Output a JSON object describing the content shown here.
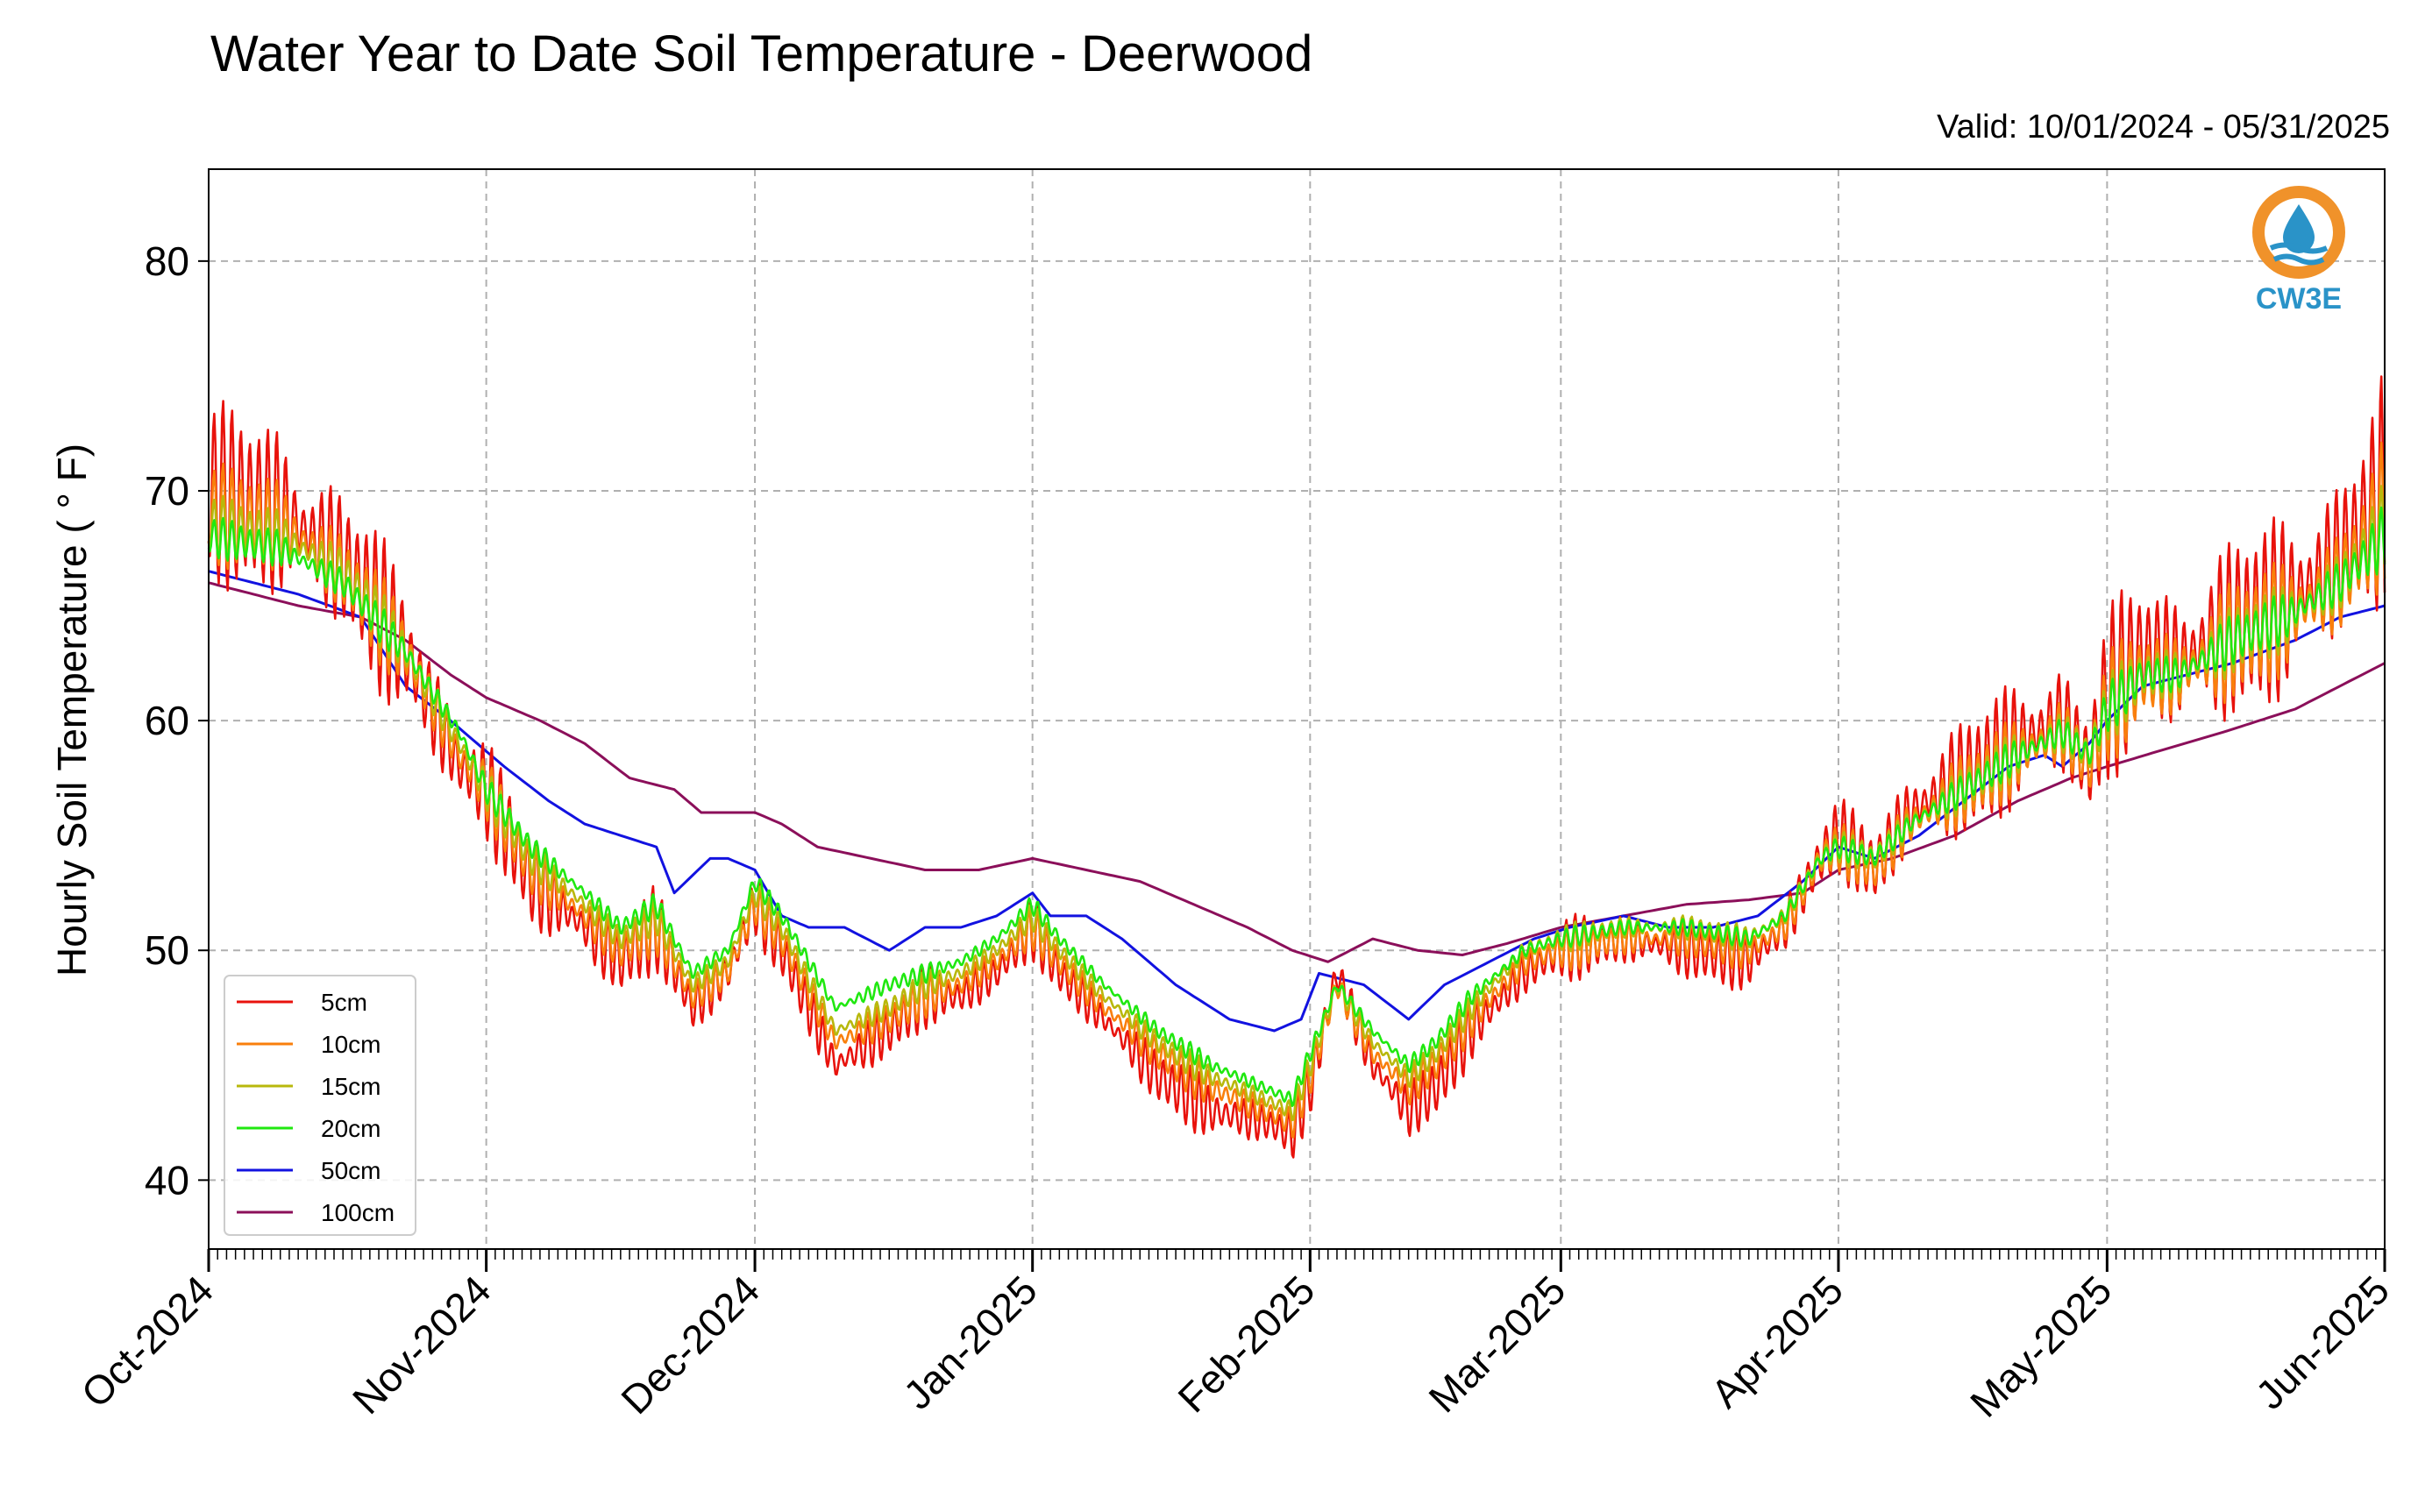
{
  "header": {
    "title": "Water Year to Date Soil Temperature - Deerwood",
    "valid_range": "Valid: 10/01/2024 - 05/31/2025"
  },
  "logo": {
    "text": "CW3E",
    "icon": "water-drop-logo-icon",
    "ring_color": "#f0922a",
    "wave_color": "#2a93c8"
  },
  "chart_data": {
    "type": "line",
    "title": "Water Year to Date Soil Temperature - Deerwood",
    "ylabel": "Hourly Soil Temperature ( ° F)",
    "xlabel": "",
    "ylim": [
      37,
      84
    ],
    "yticks": [
      40,
      50,
      60,
      70,
      80
    ],
    "xlim_days": [
      0,
      243
    ],
    "xticks": [
      {
        "label": "Oct-2024",
        "day": 0
      },
      {
        "label": "Nov-2024",
        "day": 31
      },
      {
        "label": "Dec-2024",
        "day": 61
      },
      {
        "label": "Jan-2025",
        "day": 92
      },
      {
        "label": "Feb-2025",
        "day": 123
      },
      {
        "label": "Mar-2025",
        "day": 151
      },
      {
        "label": "Apr-2025",
        "day": 182
      },
      {
        "label": "May-2025",
        "day": 212
      },
      {
        "label": "Jun-2025",
        "day": 243
      }
    ],
    "grid": true,
    "legend_position": "lower-left",
    "series": [
      {
        "name": "5cm",
        "color": "#e8120c",
        "note": "hourly with large diurnal swing",
        "x": [
          0,
          8,
          15,
          22,
          28,
          31,
          36,
          42,
          46,
          50,
          54,
          58,
          61,
          64,
          70,
          76,
          80,
          84,
          88,
          92,
          95,
          100,
          106,
          112,
          118,
          121,
          123,
          126,
          130,
          134,
          137,
          141,
          147,
          151,
          158,
          165,
          172,
          176,
          180,
          182,
          186,
          190,
          196,
          202,
          207,
          210,
          212,
          216,
          220,
          226,
          232,
          238,
          243
        ],
        "y": [
          70,
          69,
          67,
          63,
          58,
          57,
          53,
          51,
          49.5,
          51,
          47.5,
          49,
          52,
          50,
          45,
          46.5,
          48,
          48,
          49,
          51,
          49,
          47,
          44.5,
          43,
          42.5,
          42,
          44,
          49,
          45,
          43,
          44,
          46.5,
          49,
          50,
          50.5,
          50,
          49.5,
          51,
          54,
          55,
          53.5,
          56,
          57.5,
          59,
          60,
          58,
          61,
          63,
          62.5,
          64,
          65,
          67,
          70
        ],
        "amp": [
          9,
          9,
          8,
          7,
          6,
          5,
          5,
          4,
          4,
          4,
          4,
          3.5,
          3,
          3,
          3,
          3,
          3,
          3,
          3,
          3,
          2.5,
          2.5,
          3,
          3,
          3,
          3,
          2.5,
          2.5,
          3,
          3,
          3.5,
          3,
          3,
          3,
          3,
          3,
          3,
          3.5,
          4,
          3.5,
          4.5,
          5,
          6,
          6.5,
          7,
          7,
          8,
          8.5,
          8.5,
          9,
          9.5,
          10,
          11
        ]
      },
      {
        "name": "10cm",
        "color": "#f97f0c",
        "note": "hourly",
        "x": [
          0,
          8,
          15,
          22,
          28,
          31,
          36,
          42,
          46,
          50,
          54,
          58,
          61,
          64,
          70,
          76,
          80,
          84,
          88,
          92,
          95,
          100,
          106,
          112,
          118,
          121,
          123,
          126,
          130,
          134,
          137,
          141,
          147,
          151,
          158,
          165,
          172,
          176,
          180,
          182,
          186,
          190,
          196,
          202,
          207,
          210,
          212,
          216,
          220,
          226,
          232,
          238,
          243
        ],
        "y": [
          69,
          68.5,
          66.5,
          63,
          58.5,
          57,
          53.5,
          51.5,
          50,
          51,
          48,
          49,
          52,
          50.5,
          46,
          47,
          48,
          48.5,
          49.5,
          51,
          49.5,
          47.5,
          45.5,
          44,
          43,
          42.5,
          44.5,
          48.5,
          45.5,
          44,
          45,
          47,
          49.5,
          50,
          50.5,
          50.5,
          50,
          51,
          54,
          54.5,
          53.5,
          55.5,
          57,
          58.5,
          59.5,
          58,
          60.5,
          62,
          62,
          63.5,
          64.5,
          66,
          69
        ],
        "amp": [
          5,
          5,
          4.5,
          4,
          3.5,
          3,
          3,
          2.5,
          2.5,
          2.5,
          2.5,
          2.5,
          2,
          2,
          2,
          2,
          2,
          2,
          2,
          2,
          1.8,
          1.8,
          2,
          2,
          2,
          2,
          1.8,
          1.8,
          2,
          2,
          2.2,
          2,
          2,
          2,
          2,
          2,
          2,
          2.2,
          2.5,
          2.2,
          3,
          3.3,
          3.8,
          4,
          4.5,
          4.5,
          5,
          5.5,
          5.5,
          6,
          6,
          6.5,
          7
        ]
      },
      {
        "name": "15cm",
        "color": "#b8b80c",
        "note": "hourly",
        "x": [
          0,
          8,
          15,
          22,
          28,
          31,
          36,
          42,
          46,
          50,
          54,
          58,
          61,
          64,
          70,
          76,
          80,
          84,
          88,
          92,
          95,
          100,
          106,
          112,
          118,
          121,
          123,
          126,
          130,
          134,
          137,
          141,
          147,
          151,
          158,
          165,
          172,
          176,
          180,
          182,
          186,
          190,
          196,
          202,
          207,
          210,
          212,
          216,
          220,
          226,
          232,
          238,
          243
        ],
        "y": [
          68.5,
          68,
          66.5,
          63,
          59,
          57,
          54,
          52,
          50.5,
          51.5,
          48.5,
          49.5,
          52.5,
          51,
          46.5,
          47.5,
          48.5,
          49,
          50,
          51.5,
          50,
          48,
          46,
          44.5,
          43.5,
          43,
          45,
          48.5,
          46,
          44.5,
          45.5,
          47.5,
          50,
          50.5,
          51,
          51,
          50.5,
          51.5,
          54,
          54.5,
          54,
          55.5,
          57,
          58.5,
          59.5,
          58.5,
          60.5,
          62,
          62,
          63.5,
          64.5,
          66,
          68.5
        ],
        "amp": [
          3,
          3,
          2.8,
          2.5,
          2.2,
          2,
          2,
          1.6,
          1.6,
          1.6,
          1.6,
          1.5,
          1.3,
          1.3,
          1.3,
          1.3,
          1.3,
          1.3,
          1.3,
          1.3,
          1.2,
          1.2,
          1.3,
          1.3,
          1.3,
          1.3,
          1.2,
          1.2,
          1.3,
          1.3,
          1.4,
          1.3,
          1.3,
          1.3,
          1.3,
          1.3,
          1.3,
          1.4,
          1.6,
          1.4,
          1.8,
          2,
          2.3,
          2.5,
          2.8,
          2.8,
          3,
          3.3,
          3.3,
          3.5,
          3.5,
          3.8,
          4
        ]
      },
      {
        "name": "20cm",
        "color": "#20e810",
        "note": "hourly",
        "x": [
          0,
          8,
          15,
          22,
          28,
          31,
          36,
          42,
          46,
          50,
          54,
          58,
          61,
          64,
          70,
          76,
          80,
          84,
          88,
          92,
          95,
          100,
          106,
          112,
          118,
          121,
          123,
          126,
          130,
          134,
          137,
          141,
          147,
          151,
          158,
          165,
          172,
          176,
          180,
          182,
          186,
          190,
          196,
          202,
          207,
          210,
          212,
          216,
          220,
          226,
          232,
          238,
          243
        ],
        "y": [
          68,
          67.5,
          66,
          63,
          59.5,
          57,
          54.5,
          52.5,
          51,
          52,
          49,
          50,
          53,
          51.5,
          47.5,
          48.5,
          49,
          49.5,
          50.5,
          52,
          50.5,
          48.5,
          46.5,
          45,
          44,
          43.5,
          45.5,
          48.5,
          46.5,
          45,
          46,
          48,
          50,
          50.5,
          51,
          51,
          50.5,
          51.5,
          54,
          54.5,
          54,
          55.5,
          57,
          58.5,
          59.5,
          58.5,
          60.5,
          62,
          62,
          63.5,
          64.5,
          66,
          68
        ],
        "amp": [
          2,
          2,
          1.8,
          1.6,
          1.4,
          1.3,
          1.3,
          1.1,
          1.1,
          1.1,
          1.1,
          1,
          0.9,
          0.9,
          0.9,
          0.9,
          0.9,
          0.9,
          0.9,
          0.9,
          0.8,
          0.8,
          0.9,
          0.9,
          0.9,
          0.9,
          0.8,
          0.8,
          0.9,
          0.9,
          1,
          0.9,
          0.9,
          0.9,
          0.9,
          0.9,
          0.9,
          1,
          1.1,
          1,
          1.3,
          1.4,
          1.6,
          1.8,
          2,
          2,
          2.2,
          2.4,
          2.4,
          2.6,
          2.6,
          2.8,
          3
        ]
      },
      {
        "name": "50cm",
        "color": "#1212e0",
        "note": "smooth",
        "x": [
          0,
          5,
          10,
          17,
          22,
          27,
          30,
          33,
          38,
          42,
          46,
          50,
          52,
          56,
          58,
          61,
          64,
          67,
          71,
          76,
          80,
          84,
          88,
          92,
          94,
          98,
          102,
          108,
          114,
          119,
          122,
          124,
          129,
          134,
          138,
          143,
          148,
          152,
          158,
          163,
          168,
          173,
          178,
          182,
          186,
          191,
          196,
          201,
          205,
          207,
          210,
          212,
          216,
          221,
          226,
          233,
          238,
          243
        ],
        "y": [
          66.5,
          66,
          65.5,
          64.5,
          61.5,
          60,
          59,
          58,
          56.5,
          55.5,
          55,
          54.5,
          52.5,
          54,
          54,
          53.5,
          51.5,
          51,
          51,
          50,
          51,
          51,
          51.5,
          52.5,
          51.5,
          51.5,
          50.5,
          48.5,
          47,
          46.5,
          47,
          49,
          48.5,
          47,
          48.5,
          49.5,
          50.5,
          51,
          51.5,
          51,
          51,
          51.5,
          53,
          54.5,
          54,
          55,
          56.5,
          58,
          58.5,
          58,
          59,
          60,
          61.5,
          62,
          62.5,
          63.5,
          64.5,
          65
        ]
      },
      {
        "name": "100cm",
        "color": "#8b0f5a",
        "note": "smooth",
        "x": [
          0,
          10,
          17,
          22,
          27,
          31,
          37,
          42,
          47,
          52,
          55,
          58,
          61,
          64,
          68,
          74,
          80,
          86,
          92,
          98,
          104,
          110,
          116,
          121,
          125,
          130,
          135,
          140,
          145,
          151,
          158,
          165,
          172,
          178,
          182,
          188,
          195,
          202,
          208,
          212,
          218,
          225,
          233,
          243
        ],
        "y": [
          66,
          65,
          64.5,
          63.5,
          62,
          61,
          60,
          59,
          57.5,
          57,
          56,
          56,
          56,
          55.5,
          54.5,
          54,
          53.5,
          53.5,
          54,
          53.5,
          53,
          52,
          51,
          50,
          49.5,
          50.5,
          50,
          49.8,
          50.3,
          51,
          51.5,
          52,
          52.2,
          52.5,
          53.5,
          54,
          55,
          56.5,
          57.5,
          58,
          58.7,
          59.5,
          60.5,
          62.5
        ]
      }
    ]
  }
}
